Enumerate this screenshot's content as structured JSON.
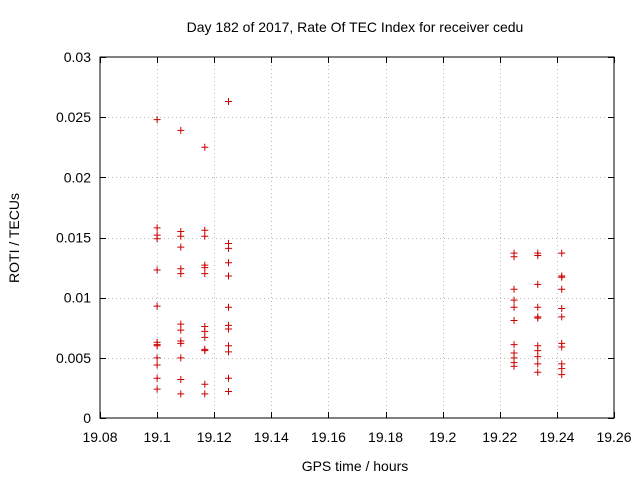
{
  "chart_data": {
    "type": "scatter",
    "title": "Day 182 of 2017, Rate Of TEC Index for receiver cedu",
    "xlabel": "GPS time / hours",
    "ylabel": "ROTI / TECUs",
    "xlim": [
      19.08,
      19.26
    ],
    "ylim": [
      0,
      0.03
    ],
    "x_ticks": [
      19.08,
      19.1,
      19.12,
      19.14,
      19.16,
      19.18,
      19.2,
      19.22,
      19.24,
      19.26
    ],
    "x_tick_labels": [
      "19.08",
      "19.1",
      "19.12",
      "19.14",
      "19.16",
      "19.18",
      "19.2",
      "19.22",
      "19.24",
      "19.26"
    ],
    "y_ticks": [
      0,
      0.005,
      0.01,
      0.015,
      0.02,
      0.025,
      0.03
    ],
    "y_tick_labels": [
      "0",
      "0.005",
      "0.01",
      "0.015",
      "0.02",
      "0.025",
      "0.03"
    ],
    "marker": "+",
    "marker_color": "#cc0000",
    "grid": true,
    "series": [
      {
        "name": "ROTI",
        "points": [
          [
            19.1,
            0.0248
          ],
          [
            19.1,
            0.0158
          ],
          [
            19.1,
            0.0152
          ],
          [
            19.1,
            0.0149
          ],
          [
            19.1,
            0.0123
          ],
          [
            19.1,
            0.0093
          ],
          [
            19.1,
            0.0063
          ],
          [
            19.1,
            0.0061
          ],
          [
            19.1,
            0.006
          ],
          [
            19.1,
            0.005
          ],
          [
            19.1,
            0.0044
          ],
          [
            19.1,
            0.0033
          ],
          [
            19.1,
            0.0024
          ],
          [
            19.1083,
            0.0239
          ],
          [
            19.1083,
            0.0155
          ],
          [
            19.1083,
            0.0151
          ],
          [
            19.1083,
            0.0142
          ],
          [
            19.1083,
            0.0124
          ],
          [
            19.1083,
            0.012
          ],
          [
            19.1083,
            0.0078
          ],
          [
            19.1083,
            0.0073
          ],
          [
            19.1083,
            0.0064
          ],
          [
            19.1083,
            0.0062
          ],
          [
            19.1083,
            0.005
          ],
          [
            19.1083,
            0.0032
          ],
          [
            19.1083,
            0.002
          ],
          [
            19.1167,
            0.0225
          ],
          [
            19.1167,
            0.0156
          ],
          [
            19.1167,
            0.0151
          ],
          [
            19.1167,
            0.0127
          ],
          [
            19.1167,
            0.0125
          ],
          [
            19.1167,
            0.012
          ],
          [
            19.1167,
            0.0076
          ],
          [
            19.1167,
            0.0072
          ],
          [
            19.1167,
            0.0067
          ],
          [
            19.1167,
            0.0057
          ],
          [
            19.1167,
            0.0056
          ],
          [
            19.1167,
            0.0028
          ],
          [
            19.1167,
            0.002
          ],
          [
            19.125,
            0.0263
          ],
          [
            19.125,
            0.0145
          ],
          [
            19.125,
            0.0141
          ],
          [
            19.125,
            0.0129
          ],
          [
            19.125,
            0.0118
          ],
          [
            19.125,
            0.0092
          ],
          [
            19.125,
            0.0077
          ],
          [
            19.125,
            0.0074
          ],
          [
            19.125,
            0.006
          ],
          [
            19.125,
            0.0055
          ],
          [
            19.125,
            0.0033
          ],
          [
            19.125,
            0.0022
          ],
          [
            19.225,
            0.0137
          ],
          [
            19.225,
            0.0134
          ],
          [
            19.225,
            0.0107
          ],
          [
            19.225,
            0.0098
          ],
          [
            19.225,
            0.0092
          ],
          [
            19.225,
            0.0081
          ],
          [
            19.225,
            0.0061
          ],
          [
            19.225,
            0.0054
          ],
          [
            19.225,
            0.005
          ],
          [
            19.225,
            0.0046
          ],
          [
            19.225,
            0.0043
          ],
          [
            19.2333,
            0.0137
          ],
          [
            19.2333,
            0.0135
          ],
          [
            19.2333,
            0.0111
          ],
          [
            19.2333,
            0.0092
          ],
          [
            19.2333,
            0.0084
          ],
          [
            19.2333,
            0.0083
          ],
          [
            19.2333,
            0.006
          ],
          [
            19.2333,
            0.0056
          ],
          [
            19.2333,
            0.0051
          ],
          [
            19.2333,
            0.0045
          ],
          [
            19.2333,
            0.0038
          ],
          [
            19.2417,
            0.0137
          ],
          [
            19.2417,
            0.0118
          ],
          [
            19.2417,
            0.0117
          ],
          [
            19.2417,
            0.0107
          ],
          [
            19.2417,
            0.0091
          ],
          [
            19.2417,
            0.0084
          ],
          [
            19.2417,
            0.0062
          ],
          [
            19.2417,
            0.0059
          ],
          [
            19.2417,
            0.0045
          ],
          [
            19.2417,
            0.0041
          ],
          [
            19.2417,
            0.0036
          ]
        ]
      }
    ]
  }
}
